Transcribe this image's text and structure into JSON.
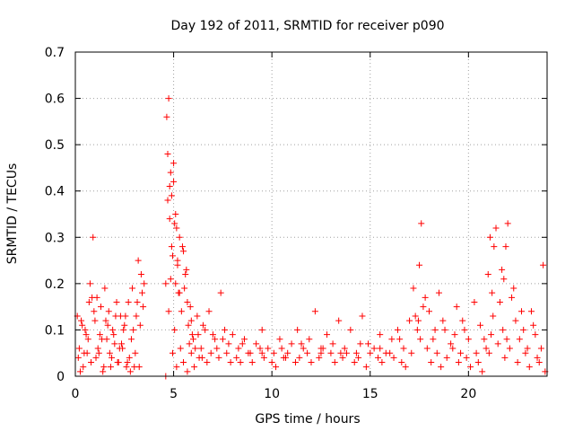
{
  "chart_data": {
    "type": "scatter",
    "title": "Day 192 of 2011, SRMTID for receiver p090",
    "xlabel": "GPS time / hours",
    "ylabel": "SRMTID / TECUs",
    "xlim": [
      0,
      24
    ],
    "ylim": [
      0,
      0.7
    ],
    "x_ticks": [
      0,
      5,
      10,
      15,
      20
    ],
    "x_tick_labels": [
      "0",
      "5",
      "10",
      "15",
      "20"
    ],
    "y_ticks": [
      0,
      0.1,
      0.2,
      0.3,
      0.4,
      0.5,
      0.6,
      0.7
    ],
    "y_tick_labels": [
      "0",
      "0.1",
      "0.2",
      "0.3",
      "0.4",
      "0.5",
      "0.6",
      "0.7"
    ],
    "grid": true,
    "marker": "+",
    "series": [
      {
        "name": "p090",
        "color": "#ff0000",
        "x": [
          0.1,
          0.2,
          0.3,
          0.4,
          0.5,
          0.6,
          0.7,
          0.8,
          0.9,
          1.0,
          1.1,
          1.2,
          1.3,
          1.4,
          1.5,
          1.6,
          1.7,
          1.8,
          1.9,
          2.0,
          2.1,
          2.2,
          2.3,
          2.4,
          2.5,
          2.6,
          2.7,
          2.8,
          2.9,
          3.0,
          3.1,
          3.2,
          3.3,
          3.4,
          3.5,
          4.6,
          4.65,
          4.7,
          4.75,
          4.8,
          4.85,
          4.9,
          4.95,
          5.0,
          5.05,
          5.1,
          5.15,
          5.2,
          5.3,
          5.4,
          5.5,
          5.6,
          5.7,
          5.8,
          5.9,
          6.0,
          6.2,
          6.4,
          6.6,
          6.8,
          7.0,
          7.2,
          7.4,
          7.6,
          7.8,
          8.0,
          8.3,
          8.6,
          8.9,
          9.2,
          9.5,
          9.8,
          10.1,
          10.4,
          10.7,
          11.0,
          11.3,
          11.6,
          11.9,
          12.2,
          12.5,
          12.8,
          13.1,
          13.4,
          13.7,
          14.0,
          14.3,
          14.6,
          14.9,
          15.2,
          15.5,
          15.8,
          16.1,
          16.4,
          16.7,
          17.0,
          17.2,
          17.4,
          17.5,
          17.6,
          17.8,
          18.0,
          18.2,
          18.5,
          18.8,
          19.1,
          19.4,
          19.7,
          20.0,
          20.3,
          20.6,
          20.9,
          21.0,
          21.1,
          21.2,
          21.4,
          21.6,
          21.8,
          21.9,
          22.0,
          22.2,
          22.4,
          22.6,
          22.8,
          23.0,
          23.2,
          23.4,
          23.6,
          23.8,
          0.15,
          0.35,
          0.55,
          0.75,
          0.95,
          1.15,
          1.35,
          1.55,
          1.75,
          1.95,
          2.15,
          2.35,
          2.55,
          2.75,
          2.95,
          3.15,
          3.35,
          4.7,
          4.8,
          4.9,
          5.0,
          5.1,
          5.2,
          5.3,
          5.45,
          5.55,
          5.65,
          5.75,
          5.85,
          5.95,
          6.1,
          6.3,
          6.5,
          7.5,
          8.5,
          9.5,
          10.5,
          11.5,
          12.5,
          13.5,
          14.5,
          15.5,
          16.5,
          17.3,
          17.7,
          18.3,
          18.7,
          19.3,
          19.8,
          20.4,
          20.8,
          21.3,
          21.7,
          22.3,
          22.7,
          23.3,
          23.7,
          0.25,
          0.45,
          0.65,
          0.85,
          1.05,
          1.25,
          1.45,
          1.65,
          1.85,
          2.05,
          2.25,
          2.45,
          2.65,
          2.85,
          3.05,
          3.25,
          3.45,
          4.6,
          4.75,
          4.85,
          4.95,
          5.05,
          5.15,
          5.25,
          5.35,
          5.5,
          5.7,
          5.9,
          6.05,
          6.25,
          6.45,
          6.7,
          6.9,
          7.1,
          7.3,
          7.7,
          7.9,
          8.2,
          8.4,
          8.8,
          9.0,
          9.4,
          9.6,
          10.0,
          10.2,
          10.6,
          10.8,
          11.2,
          11.4,
          11.8,
          12.0,
          12.4,
          12.6,
          13.0,
          13.2,
          13.6,
          13.8,
          14.2,
          14.4,
          14.8,
          15.0,
          15.4,
          15.6,
          16.0,
          16.2,
          16.6,
          16.8,
          17.1,
          17.45,
          17.55,
          17.9,
          18.1,
          18.4,
          18.6,
          18.9,
          19.2,
          19.5,
          19.6,
          19.9,
          20.1,
          20.5,
          20.7,
          21.05,
          21.15,
          21.25,
          21.5,
          21.75,
          21.85,
          21.95,
          22.1,
          22.5,
          22.9,
          23.1,
          23.5,
          23.9
        ],
        "y": [
          0.13,
          0.06,
          0.12,
          0.02,
          0.1,
          0.05,
          0.16,
          0.03,
          0.3,
          0.12,
          0.17,
          0.05,
          0.15,
          0.01,
          0.19,
          0.08,
          0.14,
          0.02,
          0.1,
          0.07,
          0.16,
          0.03,
          0.13,
          0.06,
          0.11,
          0.02,
          0.16,
          0.01,
          0.19,
          0.02,
          0.13,
          0.25,
          0.11,
          0.18,
          0.2,
          0.2,
          0.56,
          0.48,
          0.6,
          0.34,
          0.44,
          0.39,
          0.26,
          0.46,
          0.33,
          0.2,
          0.32,
          0.25,
          0.3,
          0.14,
          0.27,
          0.22,
          0.16,
          0.07,
          0.12,
          0.08,
          0.13,
          0.06,
          0.1,
          0.14,
          0.09,
          0.06,
          0.18,
          0.1,
          0.07,
          0.09,
          0.06,
          0.08,
          0.05,
          0.07,
          0.1,
          0.06,
          0.05,
          0.08,
          0.04,
          0.07,
          0.1,
          0.06,
          0.08,
          0.14,
          0.05,
          0.09,
          0.07,
          0.12,
          0.06,
          0.1,
          0.05,
          0.13,
          0.07,
          0.06,
          0.09,
          0.05,
          0.08,
          0.1,
          0.06,
          0.12,
          0.19,
          0.1,
          0.24,
          0.33,
          0.17,
          0.14,
          0.08,
          0.18,
          0.1,
          0.07,
          0.15,
          0.12,
          0.08,
          0.16,
          0.11,
          0.06,
          0.22,
          0.3,
          0.18,
          0.32,
          0.16,
          0.21,
          0.28,
          0.33,
          0.17,
          0.12,
          0.08,
          0.1,
          0.06,
          0.14,
          0.09,
          0.03,
          0.24,
          0.04,
          0.11,
          0.09,
          0.2,
          0.14,
          0.06,
          0.08,
          0.12,
          0.05,
          0.09,
          0.03,
          0.07,
          0.13,
          0.04,
          0.1,
          0.16,
          0.22,
          0.38,
          0.41,
          0.28,
          0.42,
          0.35,
          0.24,
          0.18,
          0.28,
          0.19,
          0.23,
          0.11,
          0.15,
          0.09,
          0.06,
          0.04,
          0.11,
          0.08,
          0.07,
          0.05,
          0.06,
          0.07,
          0.06,
          0.05,
          0.07,
          0.06,
          0.08,
          0.13,
          0.15,
          0.1,
          0.12,
          0.09,
          0.1,
          0.05,
          0.08,
          0.28,
          0.23,
          0.19,
          0.14,
          0.11,
          0.06,
          0.01,
          0.05,
          0.08,
          0.17,
          0.04,
          0.09,
          0.02,
          0.11,
          0.04,
          0.13,
          0.06,
          0.1,
          0.03,
          0.08,
          0.05,
          0.02,
          0.15,
          0.0,
          0.14,
          0.21,
          0.05,
          0.1,
          0.02,
          0.18,
          0.06,
          0.03,
          0.01,
          0.05,
          0.02,
          0.09,
          0.04,
          0.03,
          0.05,
          0.08,
          0.04,
          0.05,
          0.03,
          0.04,
          0.03,
          0.05,
          0.03,
          0.06,
          0.04,
          0.03,
          0.02,
          0.04,
          0.05,
          0.03,
          0.04,
          0.05,
          0.03,
          0.04,
          0.06,
          0.05,
          0.03,
          0.04,
          0.05,
          0.03,
          0.04,
          0.02,
          0.05,
          0.04,
          0.03,
          0.05,
          0.04,
          0.03,
          0.02,
          0.05,
          0.12,
          0.08,
          0.06,
          0.03,
          0.05,
          0.02,
          0.04,
          0.06,
          0.03,
          0.05,
          0.04,
          0.02,
          0.03,
          0.01,
          0.05,
          0.09,
          0.13,
          0.07,
          0.1,
          0.04,
          0.08,
          0.06,
          0.03,
          0.05,
          0.02,
          0.04,
          0.01
        ]
      }
    ]
  }
}
